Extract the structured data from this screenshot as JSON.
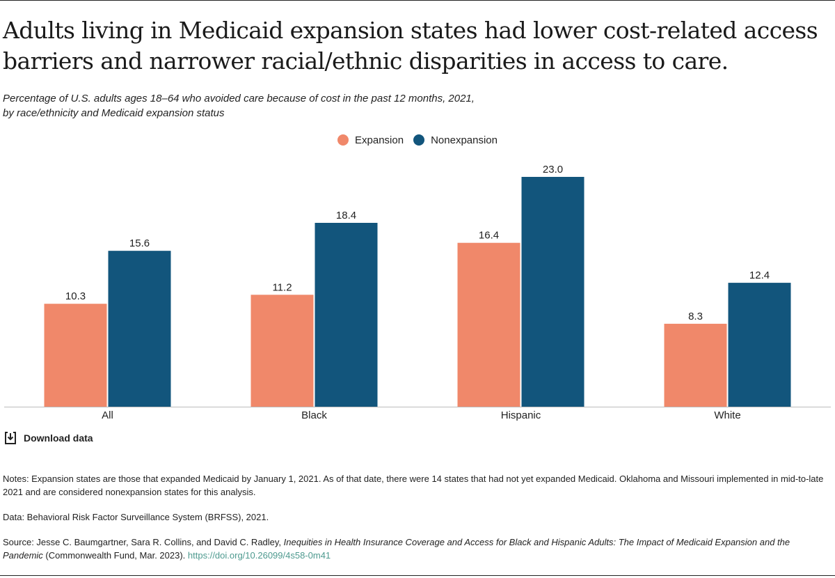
{
  "title": "Adults living in Medicaid expansion states had lower cost-related access barriers and narrower racial/ethnic disparities in access to care.",
  "subtitle_line1": "Percentage of U.S. adults ages 18–64 who avoided care because of cost in the past 12 months, 2021,",
  "subtitle_line2": "by race/ethnicity and Medicaid expansion status",
  "download_label": "Download data",
  "colors": {
    "expansion": "#f0886a",
    "nonexpansion": "#12557c"
  },
  "notes": {
    "notes_text": "Notes: Expansion states are those that expanded Medicaid by January 1, 2021. As of that date, there were 14 states that had not yet expanded Medicaid. Oklahoma and Missouri implemented in mid-to-late 2021 and are considered nonexpansion states for this analysis.",
    "data_text": "Data: Behavioral Risk Factor Surveillance System (BRFSS), 2021.",
    "source_prefix": "Source: Jesse C. Baumgartner, Sara R. Collins, and David C. Radley, ",
    "source_title": "Inequities in Health Insurance Coverage and Access for Black and Hispanic Adults: The Impact of Medicaid Expansion and the Pandemic",
    "source_suffix": " (Commonwealth Fund, Mar. 2023). ",
    "source_link": "https://doi.org/10.26099/4s58-0m41"
  },
  "chart_data": {
    "type": "bar",
    "title": "Adults living in Medicaid expansion states had lower cost-related access barriers and narrower racial/ethnic disparities in access to care.",
    "categories": [
      "All",
      "Black",
      "Hispanic",
      "White"
    ],
    "series": [
      {
        "name": "Expansion",
        "values": [
          10.3,
          11.2,
          16.4,
          8.3
        ]
      },
      {
        "name": "Nonexpansion",
        "values": [
          15.6,
          18.4,
          23.0,
          12.4
        ]
      }
    ],
    "xlabel": "",
    "ylabel": "",
    "ylim": [
      0,
      23.0
    ],
    "grid": false,
    "legend": "top-center"
  }
}
